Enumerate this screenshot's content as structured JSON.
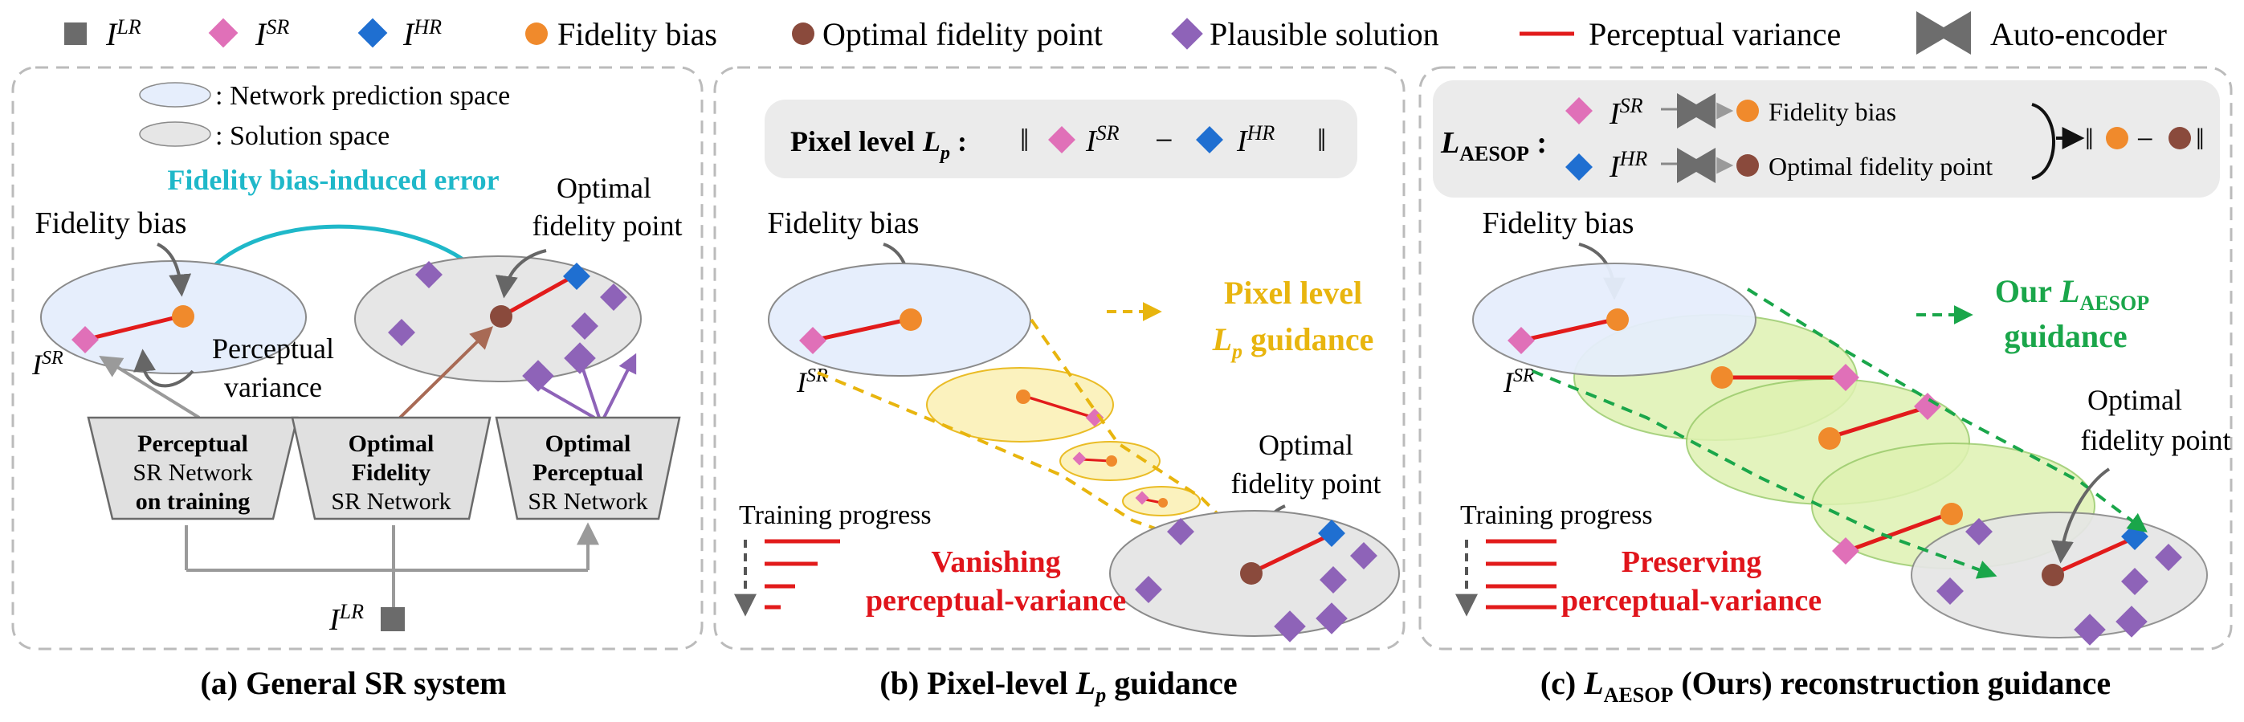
{
  "colors": {
    "lr": "#6b6b6b",
    "sr": "#e070b8",
    "hr": "#1f6fd1",
    "fidelity_bias": "#f08a2c",
    "optimal_fidelity_point": "#8a4a3c",
    "plausible": "#8e63b8",
    "perceptual_variance": "#e21b1b",
    "autoencoder": "#6d6d6d",
    "cyan": "#1fb8c9",
    "gold": "#e8b50e",
    "green": "#1aa64a",
    "red_text": "#e0141b"
  },
  "legend": {
    "lr": {
      "base": "I",
      "sup": "LR"
    },
    "sr": {
      "base": "I",
      "sup": "SR"
    },
    "hr": {
      "base": "I",
      "sup": "HR"
    },
    "fidelity_bias": "Fidelity bias",
    "optimal_fidelity_point": "Optimal fidelity point",
    "plausible_solution": "Plausible solution",
    "perceptual_variance": "Perceptual variance",
    "auto_encoder": "Auto-encoder"
  },
  "panel_a": {
    "space_network": ": Network prediction space",
    "space_solution": ": Solution space",
    "fidelity_bias_error": "Fidelity bias-induced error",
    "fidelity_bias": "Fidelity bias",
    "optimal_line1": "Optimal",
    "optimal_line2": "fidelity point",
    "perceptual_line1": "Perceptual",
    "perceptual_line2": "variance",
    "net1_line1": "Perceptual",
    "net1_line2": "SR Network",
    "net1_line3": "on training",
    "net2_line1": "Optimal",
    "net2_line2": "Fidelity",
    "net2_line3": "SR Network",
    "net3_line1": "Optimal",
    "net3_line2": "Perceptual",
    "net3_line3": "SR Network",
    "caption": "(a) General SR system"
  },
  "panel_b": {
    "formula_label": "Pixel level",
    "formula_loss": "L",
    "formula_sub": "p",
    "fidelity_bias": "Fidelity bias",
    "guidance_line1": "Pixel level",
    "guidance_line2": "guidance",
    "optimal_line1": "Optimal",
    "optimal_line2": "fidelity point",
    "training_progress": "Training progress",
    "vanishing_line1": "Vanishing",
    "vanishing_line2": "perceptual-variance",
    "caption_prefix": "(b) Pixel-level",
    "caption_suffix": "guidance"
  },
  "panel_c": {
    "loss_sub": "AESOP",
    "ae_fidelity_bias": "Fidelity bias",
    "ae_optimal": "Optimal fidelity point",
    "fidelity_bias": "Fidelity bias",
    "guidance_our": "Our",
    "guidance_line2": "guidance",
    "optimal_line1": "Optimal",
    "optimal_line2": "fidelity point",
    "training_progress": "Training progress",
    "preserving_line1": "Preserving",
    "preserving_line2": "perceptual-variance",
    "caption_prefix": "(c)",
    "caption_suffix": "(Ours) reconstruction guidance"
  }
}
